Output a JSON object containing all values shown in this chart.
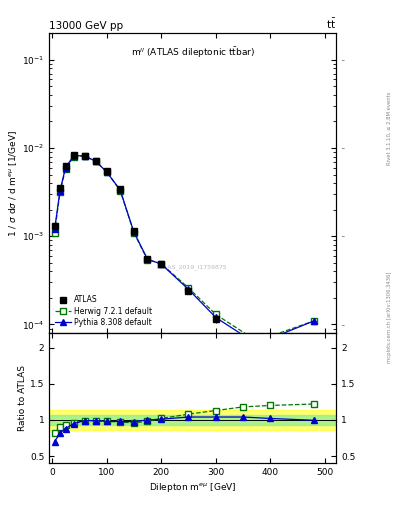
{
  "title_left": "13000 GeV pp",
  "title_right": "tt",
  "plot_label": "m^{ll} (ATLAS dileptonic ttbar)",
  "watermark": "ATLAS_2019_I1759875",
  "right_label_top": "Rivet 3.1.10, ≥ 2.8M events",
  "right_label_bot": "mcplots.cern.ch [arXiv:1306.3436]",
  "xlabel": "Dilepton m^{emu} [GeV]",
  "ylabel_main": "1 / sigma dsigma / d m^{emu} [1/GeV]",
  "ylabel_ratio": "Ratio to ATLAS",
  "atlas_x": [
    5,
    15,
    25,
    40,
    60,
    80,
    100,
    125,
    150,
    175,
    200,
    250,
    300
  ],
  "atlas_y": [
    0.0013,
    0.0035,
    0.0062,
    0.0083,
    0.0082,
    0.0072,
    0.0055,
    0.0034,
    0.00115,
    0.00055,
    0.00048,
    0.00024,
    0.000115
  ],
  "atlas_yerr": [
    0.00012,
    0.00015,
    0.0002,
    0.00025,
    0.00025,
    0.0002,
    0.00018,
    0.00012,
    7e-05,
    4e-05,
    3.5e-05,
    2e-05,
    1e-05
  ],
  "herwig_x": [
    5,
    15,
    25,
    40,
    60,
    80,
    100,
    125,
    150,
    175,
    200,
    250,
    300,
    375,
    480
  ],
  "herwig_y": [
    0.0011,
    0.0032,
    0.0058,
    0.008,
    0.0081,
    0.0071,
    0.0054,
    0.0033,
    0.0011,
    0.00054,
    0.00049,
    0.00026,
    0.00013,
    6.5e-05,
    0.00011
  ],
  "pythia_x": [
    5,
    15,
    25,
    40,
    60,
    80,
    100,
    125,
    150,
    175,
    200,
    250,
    300,
    375,
    480
  ],
  "pythia_y": [
    0.0012,
    0.0033,
    0.006,
    0.0082,
    0.00815,
    0.0071,
    0.0054,
    0.00335,
    0.00112,
    0.00055,
    0.000485,
    0.00025,
    0.00012,
    6e-05,
    0.00011
  ],
  "ratio_herwig_x": [
    5,
    15,
    25,
    40,
    60,
    80,
    100,
    125,
    150,
    175,
    200,
    250,
    300,
    350,
    400,
    480
  ],
  "ratio_herwig_y": [
    0.82,
    0.9,
    0.93,
    0.96,
    0.99,
    0.99,
    0.98,
    0.97,
    0.96,
    0.98,
    1.02,
    1.08,
    1.13,
    1.18,
    1.2,
    1.22
  ],
  "ratio_pythia_x": [
    5,
    15,
    25,
    40,
    60,
    80,
    100,
    125,
    150,
    175,
    200,
    250,
    300,
    350,
    400,
    480
  ],
  "ratio_pythia_y": [
    0.7,
    0.82,
    0.88,
    0.95,
    0.99,
    0.99,
    0.98,
    0.98,
    0.975,
    1.0,
    1.01,
    1.04,
    1.04,
    1.04,
    1.02,
    0.995
  ],
  "atlas_color": "#000000",
  "herwig_color": "#007700",
  "pythia_color": "#0000cc",
  "xlim": [
    -5,
    520
  ],
  "ylim_main": [
    8e-05,
    0.2
  ],
  "ylim_ratio": [
    0.4,
    2.2
  ],
  "yticks_ratio": [
    0.5,
    1.0,
    1.5,
    2.0
  ],
  "band_green": [
    0.93,
    1.07
  ],
  "band_yellow": [
    0.86,
    1.14
  ]
}
